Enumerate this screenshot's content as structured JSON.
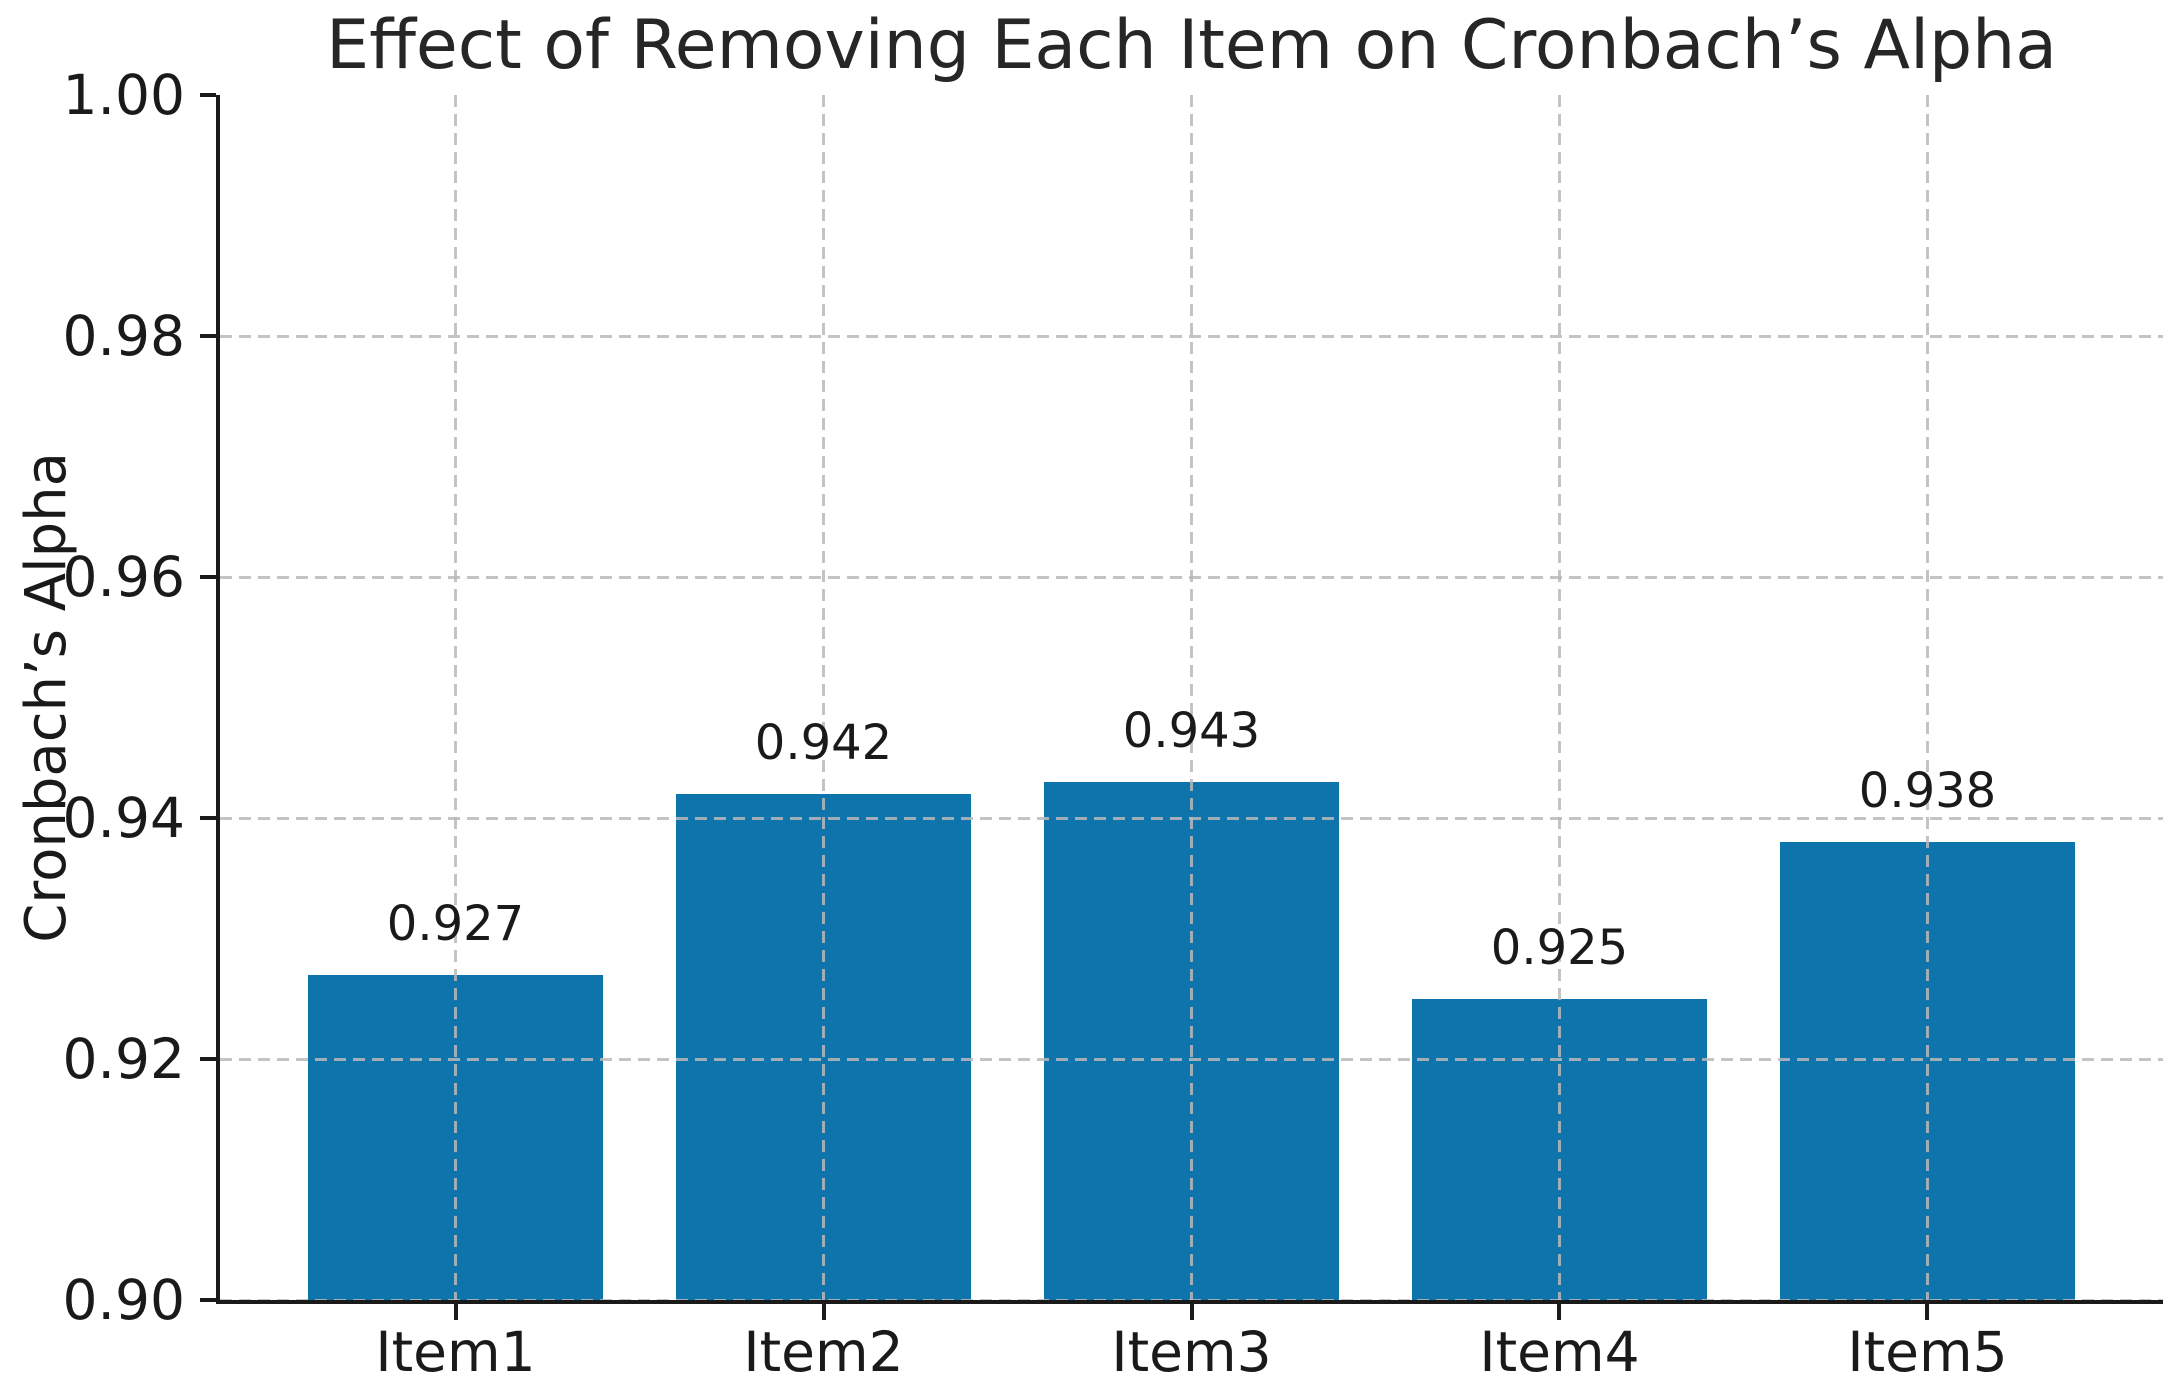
{
  "chart_data": {
    "type": "bar",
    "title": "Effect of Removing Each Item on Cronbach’s Alpha",
    "xlabel": "",
    "ylabel": "Cronbach’s Alpha",
    "categories": [
      "Item1",
      "Item2",
      "Item3",
      "Item4",
      "Item5"
    ],
    "values": [
      0.927,
      0.942,
      0.943,
      0.925,
      0.938
    ],
    "bar_value_labels": [
      "0.927",
      "0.942",
      "0.943",
      "0.925",
      "0.938"
    ],
    "ylim": [
      0.9,
      1.0
    ],
    "xlim": [
      -0.64,
      4.64
    ],
    "bar_width_units": 0.8,
    "yticks": [
      0.9,
      0.92,
      0.94,
      0.96,
      0.98,
      1.0
    ],
    "ytick_labels": [
      "0.90",
      "0.92",
      "0.94",
      "0.96",
      "0.98",
      "1.00"
    ],
    "grid": true,
    "grid_style": "dashed",
    "grid_axes": "both",
    "legend_position": "none",
    "colors": {
      "bar": "#0e74ac",
      "grid": "#c9c9c9",
      "text": "#1a1a1a",
      "spine": "#1a1a1a",
      "background": "#ffffff"
    }
  }
}
